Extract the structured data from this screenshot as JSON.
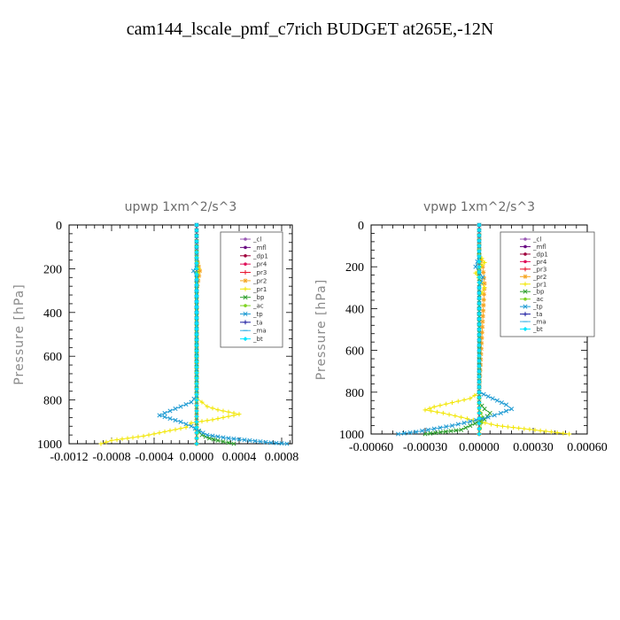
{
  "title": "cam144_lscale_pmf_c7rich  BUDGET at265E,-12N",
  "chart_data": [
    {
      "type": "line",
      "title": "upwp   1xm^2/s^3",
      "ylabel": "Pressure [hPa]",
      "xlabel": "",
      "xlim": [
        -0.0012,
        0.0009
      ],
      "ylim": [
        1000,
        0
      ],
      "xticks": [
        -0.0012,
        -0.0008,
        -0.0004,
        0.0,
        0.0004,
        0.0008
      ],
      "xtick_labels": [
        "-0.0012",
        "-0.0008",
        "-0.0004",
        "0.0000",
        "0.0004",
        "0.0008"
      ],
      "yticks": [
        0,
        200,
        400,
        600,
        800,
        1000
      ],
      "ytick_labels": [
        "0",
        "200",
        "400",
        "600",
        "800",
        "1000"
      ],
      "legend_position": "top-right",
      "series": [
        {
          "name": "_cl",
          "color": "#9b59b6",
          "marker": "dot",
          "x": [
            0,
            0,
            0,
            0,
            0,
            0
          ],
          "y": [
            0,
            200,
            400,
            600,
            800,
            1000
          ]
        },
        {
          "name": "_mfl",
          "color": "#6a0d83",
          "marker": "dot",
          "x": [
            0,
            0,
            0,
            0,
            0,
            0
          ],
          "y": [
            0,
            200,
            400,
            600,
            800,
            1000
          ]
        },
        {
          "name": "_dp1",
          "color": "#a0003c",
          "marker": "dot",
          "x": [
            0,
            0,
            0,
            0,
            0,
            0
          ],
          "y": [
            0,
            200,
            400,
            600,
            800,
            1000
          ]
        },
        {
          "name": "_pr4",
          "color": "#e0105a",
          "marker": "dot",
          "x": [
            0,
            0,
            0,
            0,
            0,
            0
          ],
          "y": [
            0,
            200,
            400,
            600,
            800,
            1000
          ]
        },
        {
          "name": "_pr3",
          "color": "#e8102a",
          "marker": "plus",
          "x": [
            0,
            0,
            0,
            0,
            0,
            0
          ],
          "y": [
            0,
            200,
            400,
            600,
            800,
            1000
          ]
        },
        {
          "name": "_pr2",
          "color": "#f5a623",
          "marker": "star",
          "x": [
            0,
            0,
            3e-05,
            0,
            0,
            0
          ],
          "y": [
            0,
            150,
            210,
            300,
            800,
            1000
          ]
        },
        {
          "name": "_pr1",
          "color": "#f2e600",
          "marker": "plus",
          "x": [
            0,
            0,
            2e-05,
            0,
            0,
            5e-05,
            0.0001,
            0.0002,
            0.0003,
            0.0004,
            0.00015,
            -5e-05,
            -0.0001,
            -0.0003,
            -0.0005,
            -0.0008,
            -0.0009
          ],
          "y": [
            0,
            150,
            200,
            260,
            790,
            810,
            830,
            845,
            855,
            865,
            890,
            905,
            925,
            945,
            965,
            985,
            1000
          ]
        },
        {
          "name": "_bp",
          "color": "#2ea02e",
          "marker": "x",
          "x": [
            0,
            0,
            2e-05,
            5e-05,
            0.00012,
            0.0002,
            0.0003,
            0.00035
          ],
          "y": [
            0,
            930,
            945,
            960,
            975,
            985,
            995,
            1000
          ]
        },
        {
          "name": "_ac",
          "color": "#7ed321",
          "marker": "dot",
          "x": [
            0,
            0,
            1e-05,
            0
          ],
          "y": [
            0,
            900,
            950,
            1000
          ]
        },
        {
          "name": "_tp",
          "color": "#1f9bd3",
          "marker": "x",
          "x": [
            0,
            0,
            -3e-05,
            0,
            0,
            -5e-05,
            -0.00015,
            -0.00025,
            -0.00035,
            -0.00025,
            -0.00015,
            -5e-05,
            2e-05,
            0.0001,
            0.0003,
            0.0005,
            0.0007,
            0.00085
          ],
          "y": [
            0,
            180,
            210,
            240,
            780,
            810,
            830,
            850,
            870,
            885,
            900,
            920,
            940,
            960,
            975,
            985,
            995,
            1000
          ]
        },
        {
          "name": "_ta",
          "color": "#1a1aa0",
          "marker": "plus",
          "x": [
            0,
            0,
            0,
            0
          ],
          "y": [
            0,
            400,
            800,
            1000
          ]
        },
        {
          "name": "_ma",
          "color": "#3cb4e6",
          "marker": "dash",
          "x": [
            0,
            0,
            0,
            0
          ],
          "y": [
            0,
            400,
            800,
            1000
          ]
        },
        {
          "name": "_bt",
          "color": "#00e5ff",
          "marker": "diamond",
          "x": [
            0,
            0,
            0,
            0
          ],
          "y": [
            0,
            400,
            800,
            1000
          ]
        }
      ]
    },
    {
      "type": "line",
      "title": "vpwp   1xm^2/s^3",
      "ylabel": "Pressure [hPa]",
      "xlabel": "",
      "xlim": [
        -0.0006,
        0.0006
      ],
      "ylim": [
        1000,
        0
      ],
      "xticks": [
        -0.0006,
        -0.0003,
        0.0,
        0.0003,
        0.0006
      ],
      "xtick_labels": [
        "-0.00060",
        "-0.00030",
        "0.00000",
        "0.00030",
        "0.00060"
      ],
      "yticks": [
        0,
        200,
        400,
        600,
        800,
        1000
      ],
      "ytick_labels": [
        "0",
        "200",
        "400",
        "600",
        "800",
        "1000"
      ],
      "legend_position": "top-right",
      "series": [
        {
          "name": "_cl",
          "color": "#9b59b6",
          "marker": "dot",
          "x": [
            0,
            0,
            0,
            0,
            0,
            0
          ],
          "y": [
            0,
            200,
            400,
            600,
            800,
            1000
          ]
        },
        {
          "name": "_mfl",
          "color": "#6a0d83",
          "marker": "dot",
          "x": [
            0,
            0,
            0,
            0,
            0,
            0
          ],
          "y": [
            0,
            200,
            400,
            600,
            800,
            1000
          ]
        },
        {
          "name": "_dp1",
          "color": "#a0003c",
          "marker": "dot",
          "x": [
            0,
            0,
            0,
            0,
            0,
            0
          ],
          "y": [
            0,
            200,
            400,
            600,
            800,
            1000
          ]
        },
        {
          "name": "_pr4",
          "color": "#e0105a",
          "marker": "dot",
          "x": [
            0,
            0,
            0,
            0,
            0,
            0
          ],
          "y": [
            0,
            200,
            400,
            600,
            800,
            1000
          ]
        },
        {
          "name": "_pr3",
          "color": "#e8102a",
          "marker": "plus",
          "x": [
            0,
            0,
            0,
            0,
            0,
            0
          ],
          "y": [
            0,
            200,
            400,
            600,
            800,
            1000
          ]
        },
        {
          "name": "_pr2",
          "color": "#f5a623",
          "marker": "star",
          "x": [
            0,
            0,
            2e-05,
            3e-05,
            0,
            0
          ],
          "y": [
            0,
            140,
            200,
            280,
            800,
            1000
          ]
        },
        {
          "name": "_pr1",
          "color": "#f2e600",
          "marker": "plus",
          "x": [
            0,
            0,
            3e-05,
            -2e-05,
            3e-05,
            0,
            0,
            -5e-05,
            -0.00015,
            -0.00025,
            -0.0003,
            -0.0002,
            -0.0001,
            0,
            0.0001,
            0.00025,
            0.0004,
            0.0005
          ],
          "y": [
            0,
            140,
            180,
            230,
            300,
            350,
            800,
            830,
            850,
            870,
            885,
            900,
            920,
            940,
            960,
            975,
            990,
            1000
          ]
        },
        {
          "name": "_bp",
          "color": "#2ea02e",
          "marker": "x",
          "x": [
            0,
            0,
            3e-05,
            6e-05,
            3e-05,
            -5e-05,
            -0.0001,
            -0.0003
          ],
          "y": [
            0,
            850,
            880,
            900,
            930,
            960,
            980,
            1000
          ]
        },
        {
          "name": "_ac",
          "color": "#7ed321",
          "marker": "dot",
          "x": [
            0,
            0,
            2e-05,
            0
          ],
          "y": [
            0,
            880,
            920,
            1000
          ]
        },
        {
          "name": "_tp",
          "color": "#1f9bd3",
          "marker": "x",
          "x": [
            0,
            0,
            -2e-05,
            2e-05,
            0,
            0,
            5e-05,
            0.0001,
            0.00015,
            0.00018,
            0.00012,
            5e-05,
            -5e-05,
            -0.00015,
            -0.00025,
            -0.00035,
            -0.00045
          ],
          "y": [
            0,
            150,
            200,
            250,
            300,
            800,
            820,
            840,
            860,
            880,
            900,
            920,
            940,
            960,
            975,
            990,
            1000
          ]
        },
        {
          "name": "_ta",
          "color": "#1a1aa0",
          "marker": "plus",
          "x": [
            0,
            0,
            0,
            0
          ],
          "y": [
            0,
            400,
            800,
            1000
          ]
        },
        {
          "name": "_ma",
          "color": "#3cb4e6",
          "marker": "dash",
          "x": [
            0,
            0,
            0,
            0
          ],
          "y": [
            0,
            400,
            800,
            1000
          ]
        },
        {
          "name": "_bt",
          "color": "#00e5ff",
          "marker": "diamond",
          "x": [
            0,
            0,
            0,
            0
          ],
          "y": [
            0,
            400,
            800,
            1000
          ]
        }
      ]
    }
  ]
}
